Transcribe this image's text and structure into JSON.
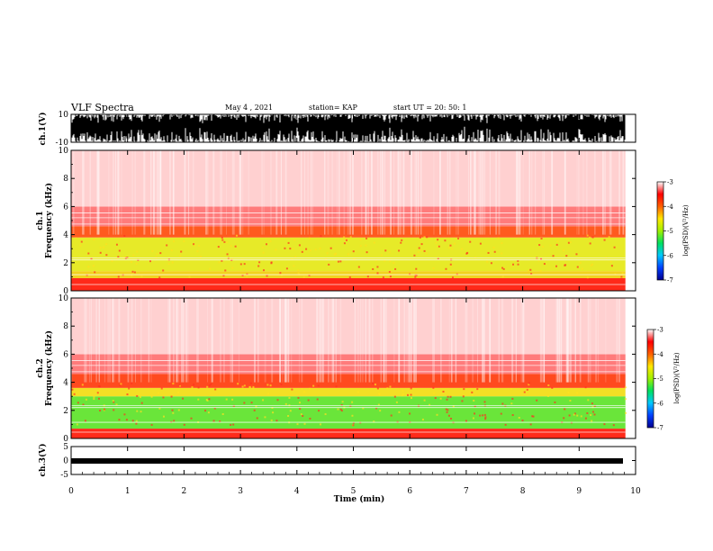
{
  "header": {
    "title": "VLF Spectra",
    "date": "May 4 , 2021",
    "station": "station= KAP",
    "start": "start UT = 20: 50: 1"
  },
  "chart_data": [
    {
      "type": "line",
      "name": "ch1-waveform",
      "ylabel": "ch.1(V)",
      "ylim": [
        -10,
        10
      ],
      "yticks": [
        "10",
        "-10"
      ],
      "xlim": [
        0,
        10
      ]
    },
    {
      "type": "heatmap",
      "name": "ch1-spectrogram",
      "ylabel_line1": "ch.1",
      "ylabel_line2": "Frequency (kHz)",
      "ylim": [
        0,
        10
      ],
      "yticks": [
        "0",
        "2",
        "4",
        "6",
        "8",
        "10"
      ],
      "x_end_min": 9.82,
      "bands": [
        {
          "from": 0,
          "to": 0.9,
          "color": "#ff2a1a"
        },
        {
          "from": 0.9,
          "to": 1.4,
          "color": "#f2d21e"
        },
        {
          "from": 1.4,
          "to": 3.8,
          "color": "#e7ea28"
        },
        {
          "from": 3.8,
          "to": 4.6,
          "color": "#ff5a1f"
        },
        {
          "from": 4.6,
          "to": 6.0,
          "color": "#ff7b7b"
        },
        {
          "from": 6.0,
          "to": 10.0,
          "color": "#ffd0d0"
        }
      ]
    },
    {
      "type": "heatmap",
      "name": "ch2-spectrogram",
      "ylabel_line1": "ch.2",
      "ylabel_line2": "Frequency (kHz)",
      "ylim": [
        0,
        10
      ],
      "yticks": [
        "0",
        "2",
        "4",
        "6",
        "8",
        "10"
      ],
      "x_end_min": 9.82,
      "bands": [
        {
          "from": 0,
          "to": 0.7,
          "color": "#ff2a1a"
        },
        {
          "from": 0.7,
          "to": 3.0,
          "color": "#6ae53a"
        },
        {
          "from": 3.0,
          "to": 3.6,
          "color": "#f3df25"
        },
        {
          "from": 3.6,
          "to": 4.6,
          "color": "#ff4a1f"
        },
        {
          "from": 4.6,
          "to": 6.0,
          "color": "#ff7b7b"
        },
        {
          "from": 6.0,
          "to": 10.0,
          "color": "#ffd0d0"
        }
      ]
    },
    {
      "type": "line",
      "name": "ch3-waveform",
      "ylabel": "ch.3(V)",
      "ylim": [
        -5,
        5
      ],
      "yticks": [
        "5",
        "0",
        "-5"
      ],
      "xlim": [
        0,
        10
      ],
      "xticks": [
        "0",
        "1",
        "2",
        "3",
        "4",
        "5",
        "6",
        "7",
        "8",
        "9",
        "10"
      ],
      "xlabel": "Time (min)"
    }
  ],
  "colorbar": {
    "label": "log(PSD)(V²/Hz)",
    "ticks": [
      "-3",
      "-4",
      "-5",
      "-6",
      "-7"
    ],
    "range": [
      -7,
      -3
    ],
    "stops": [
      "#000090",
      "#0040ff",
      "#00c8ff",
      "#00e060",
      "#a0f000",
      "#ffe800",
      "#ff6000",
      "#ff0000",
      "#ffffff"
    ]
  }
}
